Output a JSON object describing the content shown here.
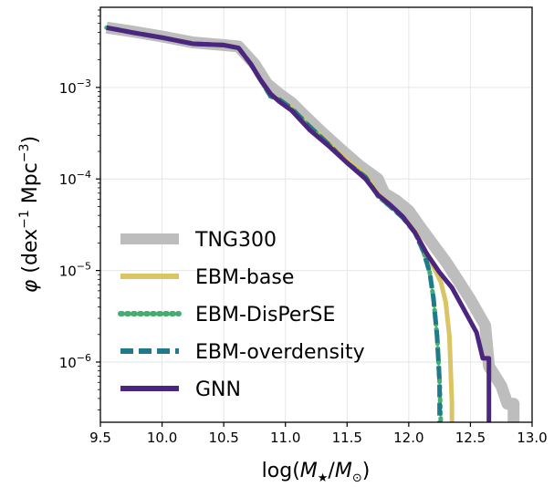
{
  "chart_data": {
    "type": "line",
    "xlabel_parts": [
      "log(",
      "M",
      "★",
      "/",
      "M",
      "⊙",
      ")"
    ],
    "ylabel_parts": [
      "φ",
      " (dex",
      "−1",
      " Mpc",
      "−3",
      ")"
    ],
    "xlim": [
      9.5,
      13.0
    ],
    "ylim": [
      2.2e-07,
      0.0075
    ],
    "yscale": "log",
    "grid": true,
    "legend_position": "lower-left",
    "x_ticks": [
      9.5,
      10.0,
      10.5,
      11.0,
      11.5,
      12.0,
      12.5,
      13.0
    ],
    "x_tick_labels": [
      "9.5",
      "10.0",
      "10.5",
      "11.0",
      "11.5",
      "12.0",
      "12.5",
      "13.0"
    ],
    "y_ticks": [
      {
        "value": 0.001,
        "base": "10",
        "exp": "−3"
      },
      {
        "value": 0.0001,
        "base": "10",
        "exp": "−4"
      },
      {
        "value": 1e-05,
        "base": "10",
        "exp": "−5"
      },
      {
        "value": 1e-06,
        "base": "10",
        "exp": "−6"
      }
    ],
    "series": [
      {
        "name": "TNG300",
        "color": "#bdbdbd",
        "style": "solid",
        "x": [
          9.55,
          9.75,
          10.0,
          10.25,
          10.5,
          10.62,
          10.75,
          10.85,
          10.95,
          11.05,
          11.15,
          11.3,
          11.45,
          11.6,
          11.75,
          11.8,
          11.9,
          12.0,
          12.1,
          12.2,
          12.3,
          12.4,
          12.5,
          12.62,
          12.65,
          12.75,
          12.8,
          12.85,
          12.85
        ],
        "y": [
          0.0045,
          0.0041,
          0.0036,
          0.0031,
          0.0029,
          0.0028,
          0.0018,
          0.0011,
          0.00085,
          0.00068,
          0.0005,
          0.00032,
          0.00021,
          0.00014,
          0.0001,
          7e-05,
          5.8e-05,
          4.5e-05,
          2.9e-05,
          1.9e-05,
          1.25e-05,
          7.8e-06,
          4.8e-06,
          2.5e-06,
          9e-07,
          5.5e-07,
          3.5e-07,
          3.5e-07,
          2.2e-07
        ]
      },
      {
        "name": "EBM-base",
        "color": "#dbc463",
        "style": "solid",
        "x": [
          9.55,
          9.75,
          10.0,
          10.25,
          10.5,
          10.62,
          10.72,
          10.8,
          10.88,
          10.95,
          11.05,
          11.2,
          11.35,
          11.5,
          11.65,
          11.75,
          11.85,
          11.95,
          12.05,
          12.12,
          12.2,
          12.26,
          12.3,
          12.33,
          12.35,
          12.35
        ],
        "y": [
          0.0045,
          0.004,
          0.0035,
          0.003,
          0.0029,
          0.0027,
          0.0018,
          0.0012,
          0.0008,
          0.00075,
          0.0006,
          0.00038,
          0.00025,
          0.00016,
          0.00011,
          7e-05,
          5.2e-05,
          3.9e-05,
          2.7e-05,
          1.75e-05,
          1.1e-05,
          7.5e-06,
          4.5e-06,
          1.9e-06,
          3.5e-07,
          2.2e-07
        ]
      },
      {
        "name": "EBM-DisPerSE",
        "color": "#46ad70",
        "style": "dotted",
        "x": [
          9.55,
          9.75,
          10.0,
          10.25,
          10.5,
          10.62,
          10.72,
          10.8,
          10.88,
          10.95,
          11.05,
          11.2,
          11.35,
          11.5,
          11.65,
          11.75,
          11.85,
          11.95,
          12.05,
          12.12,
          12.17,
          12.2,
          12.23,
          12.25,
          12.26
        ],
        "y": [
          0.0045,
          0.004,
          0.0035,
          0.003,
          0.0029,
          0.0027,
          0.0018,
          0.0012,
          0.0008,
          0.00073,
          0.00058,
          0.00037,
          0.00024,
          0.00015,
          0.000105,
          6.5e-05,
          5e-05,
          3.8e-05,
          2.6e-05,
          1.6e-05,
          9.5e-06,
          5e-06,
          1.9e-06,
          6e-07,
          2.2e-07
        ]
      },
      {
        "name": "EBM-overdensity",
        "color": "#1f7a8c",
        "style": "dashed",
        "x": [
          9.55,
          9.75,
          10.0,
          10.25,
          10.5,
          10.62,
          10.72,
          10.8,
          10.88,
          10.95,
          11.05,
          11.2,
          11.35,
          11.5,
          11.65,
          11.75,
          11.85,
          11.95,
          12.05,
          12.12,
          12.17,
          12.2,
          12.23,
          12.25,
          12.25
        ],
        "y": [
          0.0045,
          0.004,
          0.0035,
          0.003,
          0.0029,
          0.0027,
          0.0018,
          0.0012,
          0.0008,
          0.00074,
          0.00059,
          0.00037,
          0.00024,
          0.00015,
          0.000105,
          6.6e-05,
          5e-05,
          3.8e-05,
          2.6e-05,
          1.6e-05,
          9.5e-06,
          5e-06,
          1.9e-06,
          6e-07,
          2.2e-07
        ]
      },
      {
        "name": "GNN",
        "color": "#4b2580",
        "style": "solid",
        "x": [
          9.55,
          9.75,
          10.0,
          10.25,
          10.5,
          10.62,
          10.72,
          10.8,
          10.88,
          10.95,
          11.05,
          11.2,
          11.35,
          11.5,
          11.65,
          11.75,
          11.85,
          11.95,
          12.05,
          12.15,
          12.25,
          12.35,
          12.45,
          12.55,
          12.6,
          12.65,
          12.65
        ],
        "y": [
          0.0045,
          0.004,
          0.0035,
          0.003,
          0.0029,
          0.0027,
          0.0018,
          0.0012,
          0.00085,
          0.0007,
          0.00056,
          0.00034,
          0.00023,
          0.00015,
          0.0001,
          6.7e-05,
          5.2e-05,
          3.9e-05,
          2.6e-05,
          1.5e-05,
          9.5e-06,
          6.5e-06,
          3.7e-06,
          2.1e-06,
          1.1e-06,
          1.1e-06,
          2.2e-07
        ]
      }
    ]
  }
}
